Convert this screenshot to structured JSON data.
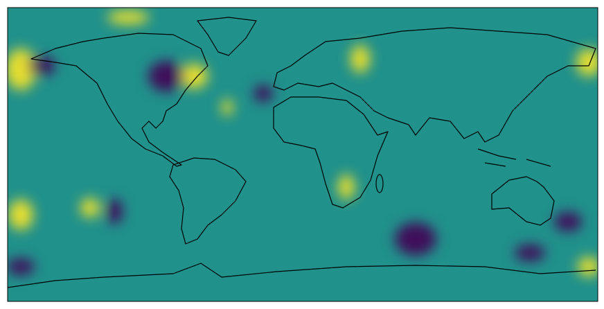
{
  "map": {
    "colormap": [
      "#440154",
      "#21918c",
      "#fde725"
    ]
  }
}
